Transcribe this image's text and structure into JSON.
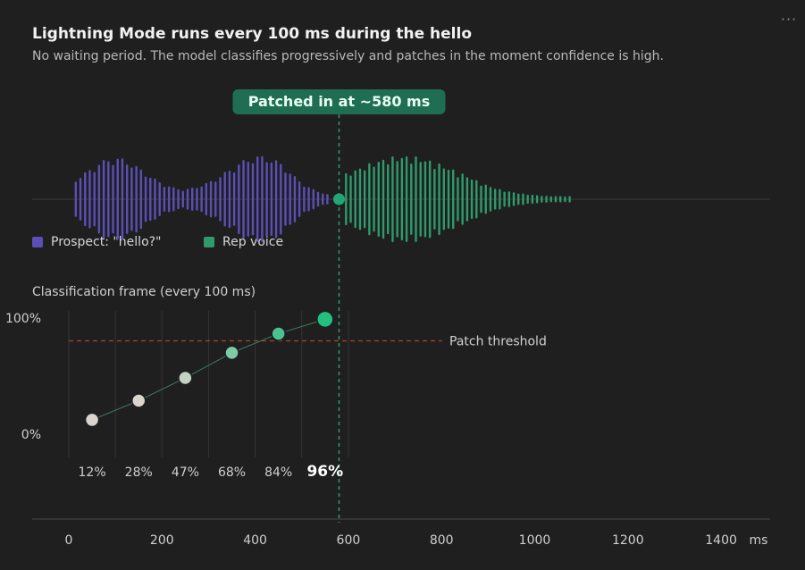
{
  "header": {
    "title": "Lightning Mode runs every 100 ms during the hello",
    "subtitle": "No waiting period. The model classifies progressively and patches in the moment confidence is high.",
    "menu_icon": "ellipsis-icon",
    "menu_glyph": "···"
  },
  "legend": {
    "prospect_label": "Prospect: \"hello?\"",
    "rep_label": "Rep voice"
  },
  "colors": {
    "prospect": "#5b4fb6",
    "rep": "#2f9a6c",
    "badge": "#1f6e54",
    "threshold": "#a2452f",
    "frame_low": "#d9d4cd",
    "frame_high": "#22c07f"
  },
  "patch_marker": {
    "label": "Patched in at ~580 ms",
    "at_ms": 580
  },
  "section_label": "Classification frame (every 100 ms)",
  "chart_data": {
    "type": "scatter",
    "x_unit": "ms",
    "x_ticks": [
      0,
      200,
      400,
      600,
      800,
      1000,
      1200,
      1400
    ],
    "xlim": [
      0,
      1450
    ],
    "y_ticks": [
      "0%",
      "100%"
    ],
    "ylim": [
      0,
      100
    ],
    "grid": true,
    "threshold": {
      "label": "Patch threshold",
      "value": 78
    },
    "x": [
      50,
      150,
      250,
      350,
      450,
      550
    ],
    "values": [
      12,
      28,
      47,
      68,
      84,
      96
    ],
    "value_labels": [
      "12%",
      "28%",
      "47%",
      "68%",
      "84%",
      "96%"
    ]
  }
}
